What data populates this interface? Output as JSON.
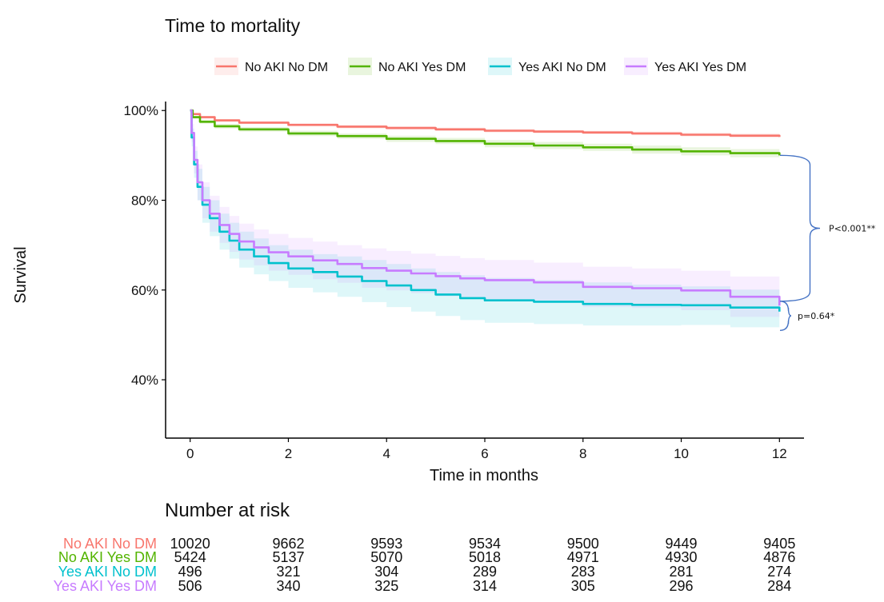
{
  "chart_data": {
    "type": "line",
    "title": "Time to mortality",
    "xlabel": "Time in months",
    "ylabel": "Survival",
    "xlim": [
      -0.5,
      12.5
    ],
    "ylim": [
      0.27,
      1.02
    ],
    "x_ticks": [
      0,
      2,
      4,
      6,
      8,
      10,
      12
    ],
    "y_ticks": [
      0.4,
      0.6,
      0.8,
      1.0
    ],
    "y_tick_labels": [
      "40%",
      "60%",
      "80%",
      "100%"
    ],
    "grid": false,
    "legend_position": "top",
    "series": [
      {
        "name": "No AKI No DM",
        "color": "#F8766D",
        "x": [
          0,
          0.05,
          0.2,
          0.5,
          1,
          2,
          3,
          4,
          5,
          6,
          7,
          8,
          9,
          10,
          11,
          12
        ],
        "y": [
          1.0,
          0.992,
          0.985,
          0.978,
          0.973,
          0.968,
          0.964,
          0.961,
          0.958,
          0.955,
          0.953,
          0.951,
          0.949,
          0.946,
          0.944,
          0.941
        ],
        "ci_upper": [
          1.0,
          0.994,
          0.988,
          0.981,
          0.976,
          0.971,
          0.968,
          0.965,
          0.962,
          0.959,
          0.957,
          0.955,
          0.953,
          0.951,
          0.949,
          0.946
        ],
        "ci_lower": [
          1.0,
          0.99,
          0.982,
          0.975,
          0.97,
          0.965,
          0.96,
          0.957,
          0.954,
          0.951,
          0.949,
          0.947,
          0.945,
          0.942,
          0.939,
          0.936
        ]
      },
      {
        "name": "No AKI Yes DM",
        "color": "#53B400",
        "x": [
          0,
          0.05,
          0.2,
          0.5,
          1,
          2,
          3,
          4,
          5,
          6,
          7,
          8,
          9,
          10,
          11,
          12
        ],
        "y": [
          1.0,
          0.985,
          0.975,
          0.965,
          0.958,
          0.949,
          0.943,
          0.937,
          0.932,
          0.926,
          0.922,
          0.918,
          0.913,
          0.909,
          0.905,
          0.9
        ],
        "ci_upper": [
          1.0,
          0.988,
          0.979,
          0.97,
          0.963,
          0.955,
          0.949,
          0.944,
          0.939,
          0.934,
          0.93,
          0.926,
          0.922,
          0.918,
          0.914,
          0.909
        ],
        "ci_lower": [
          1.0,
          0.982,
          0.971,
          0.96,
          0.953,
          0.943,
          0.937,
          0.93,
          0.925,
          0.918,
          0.914,
          0.91,
          0.904,
          0.9,
          0.896,
          0.891
        ]
      },
      {
        "name": "Yes AKI No DM",
        "color": "#00C1CD",
        "x": [
          0,
          0.03,
          0.08,
          0.15,
          0.25,
          0.4,
          0.6,
          0.8,
          1,
          1.3,
          1.6,
          2,
          2.5,
          3,
          3.5,
          4,
          4.5,
          5,
          5.5,
          6,
          7,
          8,
          9,
          10,
          11,
          12
        ],
        "y": [
          1.0,
          0.94,
          0.88,
          0.83,
          0.79,
          0.76,
          0.73,
          0.71,
          0.69,
          0.675,
          0.66,
          0.648,
          0.64,
          0.63,
          0.62,
          0.61,
          0.6,
          0.59,
          0.582,
          0.577,
          0.574,
          0.569,
          0.567,
          0.566,
          0.561,
          0.552
        ],
        "ci_upper": [
          1.0,
          0.96,
          0.91,
          0.87,
          0.83,
          0.8,
          0.77,
          0.75,
          0.73,
          0.715,
          0.7,
          0.69,
          0.68,
          0.675,
          0.667,
          0.658,
          0.648,
          0.64,
          0.633,
          0.627,
          0.622,
          0.617,
          0.612,
          0.608,
          0.601,
          0.592
        ],
        "ci_lower": [
          1.0,
          0.92,
          0.85,
          0.8,
          0.75,
          0.72,
          0.69,
          0.67,
          0.65,
          0.635,
          0.62,
          0.605,
          0.595,
          0.585,
          0.573,
          0.562,
          0.552,
          0.542,
          0.533,
          0.527,
          0.524,
          0.521,
          0.521,
          0.522,
          0.517,
          0.508
        ]
      },
      {
        "name": "Yes AKI Yes DM",
        "color": "#C77CFF",
        "x": [
          0,
          0.03,
          0.08,
          0.15,
          0.25,
          0.4,
          0.6,
          0.8,
          1,
          1.3,
          1.6,
          2,
          2.5,
          3,
          3.5,
          4,
          4.5,
          5,
          5.5,
          6,
          7,
          8,
          9,
          10,
          11,
          12
        ],
        "y": [
          1.0,
          0.95,
          0.89,
          0.84,
          0.8,
          0.77,
          0.745,
          0.725,
          0.708,
          0.695,
          0.684,
          0.675,
          0.666,
          0.658,
          0.649,
          0.643,
          0.637,
          0.631,
          0.626,
          0.622,
          0.617,
          0.607,
          0.604,
          0.599,
          0.585,
          0.565
        ],
        "ci_upper": [
          1.0,
          0.97,
          0.92,
          0.88,
          0.84,
          0.81,
          0.785,
          0.765,
          0.748,
          0.735,
          0.725,
          0.716,
          0.708,
          0.7,
          0.693,
          0.687,
          0.681,
          0.676,
          0.671,
          0.667,
          0.661,
          0.652,
          0.648,
          0.643,
          0.63,
          0.609
        ],
        "ci_lower": [
          1.0,
          0.93,
          0.86,
          0.8,
          0.76,
          0.73,
          0.705,
          0.685,
          0.668,
          0.655,
          0.643,
          0.634,
          0.624,
          0.616,
          0.605,
          0.599,
          0.593,
          0.586,
          0.581,
          0.577,
          0.573,
          0.562,
          0.56,
          0.555,
          0.54,
          0.521
        ]
      }
    ],
    "annotations": [
      {
        "text": "P<0.001**",
        "between_y": [
          0.9,
          0.575
        ]
      },
      {
        "text": "p=0.64*",
        "between_y": [
          0.575,
          0.51
        ]
      }
    ]
  },
  "risk_table": {
    "title": "Number at risk",
    "times": [
      0,
      2,
      4,
      6,
      8,
      10,
      12
    ],
    "rows": [
      {
        "name": "No AKI No DM",
        "color": "#F8766D",
        "values": [
          "10020",
          "9662",
          "9593",
          "9534",
          "9500",
          "9449",
          "9405"
        ]
      },
      {
        "name": "No AKI Yes DM",
        "color": "#53B400",
        "values": [
          "5424",
          "5137",
          "5070",
          "5018",
          "4971",
          "4930",
          "4876"
        ]
      },
      {
        "name": "Yes AKI No DM",
        "color": "#00C1CD",
        "values": [
          "496",
          "321",
          "304",
          "289",
          "283",
          "281",
          "274"
        ]
      },
      {
        "name": "Yes AKI Yes DM",
        "color": "#C77CFF",
        "values": [
          "506",
          "340",
          "325",
          "314",
          "305",
          "296",
          "284"
        ]
      }
    ]
  }
}
